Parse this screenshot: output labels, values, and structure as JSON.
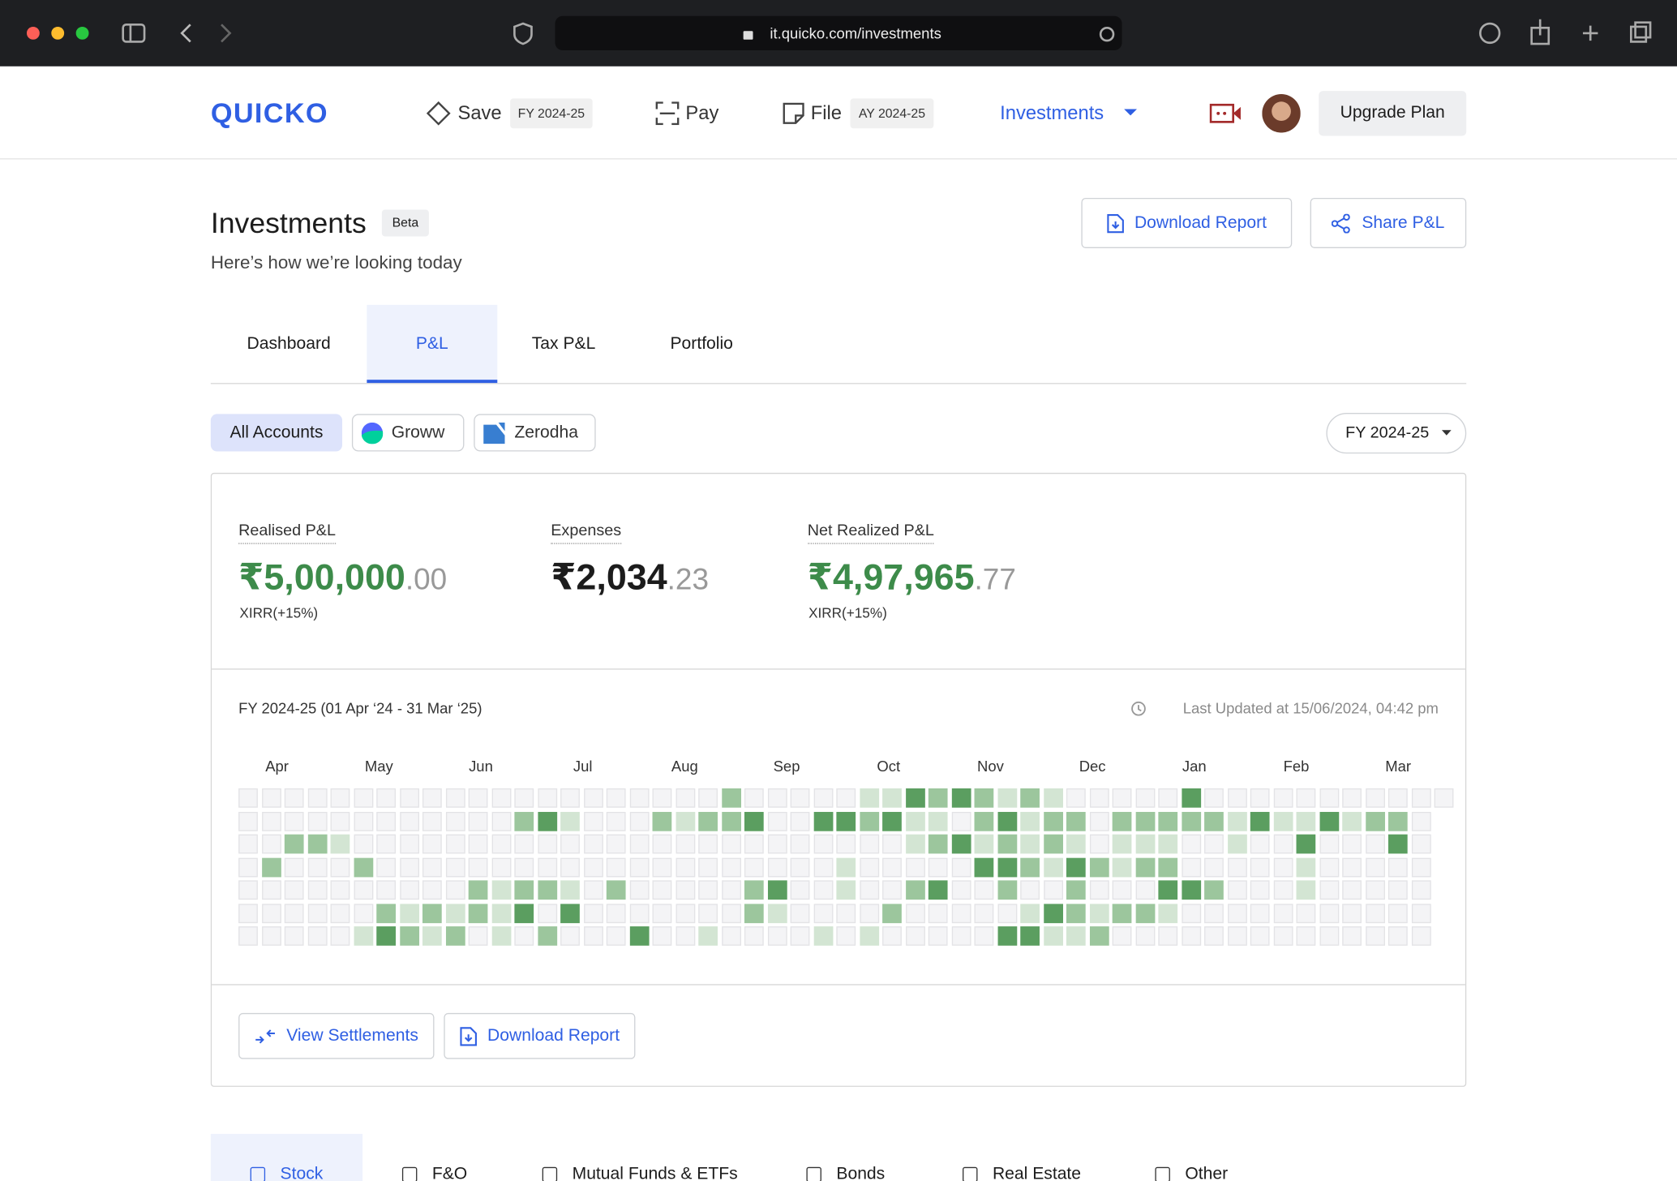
{
  "browser": {
    "url": "it.quicko.com/investments"
  },
  "nav": {
    "logo": "QUICKO",
    "items": [
      {
        "label": "Save",
        "badge": "FY 2024-25"
      },
      {
        "label": "Pay"
      },
      {
        "label": "File",
        "badge": "AY 2024-25"
      },
      {
        "label": "Investments"
      }
    ],
    "upgrade": "Upgrade Plan"
  },
  "header": {
    "title": "Investments",
    "badge": "Beta",
    "subtitle": "Here’s how we’re looking today",
    "actions": [
      "Download Report",
      "Share P&L"
    ]
  },
  "tabs": [
    "Dashboard",
    "P&L",
    "Tax P&L",
    "Portfolio"
  ],
  "active_tab": 1,
  "accounts": [
    "All Accounts",
    "Groww",
    "Zerodha"
  ],
  "period": "FY 2024-25",
  "summary": [
    {
      "label": "Realised P&L",
      "whole": "₹5,00,000",
      "decimals": ".00",
      "note": "XIRR(+15%)",
      "color": "#3d8b4a"
    },
    {
      "label": "Expenses",
      "whole": "₹2,034",
      "decimals": ".23",
      "color": "#1c1c1c"
    },
    {
      "label": "Net Realized P&L",
      "whole": "₹4,97,965",
      "decimals": ".77",
      "note": "XIRR(+15%)",
      "color": "#3d8b4a"
    }
  ],
  "heatmap": {
    "period": "FY 2024-25 (01 Apr ‘24 - 31 Mar ‘25)",
    "updated": "Last Updated at 15/06/2024, 04:42 pm",
    "months": [
      "Apr",
      "May",
      "Jun",
      "Jul",
      "Aug",
      "Sep",
      "Oct",
      "Nov",
      "Dec",
      "Jan",
      "Feb",
      "Mar"
    ],
    "colors": [
      "#f4f4f6",
      "#d3e5d3",
      "#9cc69d",
      "#5b9e60"
    ],
    "rows": [
      [
        0,
        0,
        0,
        0,
        0,
        0,
        0,
        0,
        0,
        0,
        0,
        0,
        0,
        0,
        0,
        0,
        0,
        0,
        0,
        0,
        0,
        2,
        0,
        0,
        0,
        0,
        0,
        1,
        1,
        3,
        2,
        3,
        2,
        1,
        2,
        1,
        0,
        0,
        0,
        0,
        0,
        3,
        0,
        0,
        0,
        0,
        0,
        0,
        0,
        0,
        0,
        0,
        0
      ],
      [
        0,
        0,
        0,
        0,
        0,
        0,
        0,
        0,
        0,
        0,
        0,
        0,
        2,
        3,
        1,
        0,
        0,
        0,
        2,
        1,
        2,
        2,
        3,
        0,
        0,
        3,
        3,
        2,
        3,
        1,
        1,
        0,
        2,
        3,
        1,
        2,
        2,
        0,
        2,
        2,
        2,
        2,
        2,
        1,
        3,
        1,
        1,
        3,
        1,
        2,
        2,
        0
      ],
      [
        0,
        0,
        2,
        2,
        1,
        0,
        0,
        0,
        0,
        0,
        0,
        0,
        0,
        0,
        0,
        0,
        0,
        0,
        0,
        0,
        0,
        0,
        0,
        0,
        0,
        0,
        0,
        0,
        0,
        1,
        2,
        3,
        1,
        2,
        1,
        2,
        1,
        0,
        1,
        1,
        1,
        0,
        0,
        1,
        0,
        0,
        3,
        0,
        0,
        0,
        3,
        0
      ],
      [
        0,
        2,
        0,
        0,
        0,
        2,
        0,
        0,
        0,
        0,
        0,
        0,
        0,
        0,
        0,
        0,
        0,
        0,
        0,
        0,
        0,
        0,
        0,
        0,
        0,
        0,
        1,
        0,
        0,
        0,
        0,
        0,
        3,
        3,
        2,
        1,
        3,
        2,
        1,
        2,
        2,
        0,
        0,
        0,
        0,
        0,
        1,
        0,
        0,
        0,
        0,
        0
      ],
      [
        0,
        0,
        0,
        0,
        0,
        0,
        0,
        0,
        0,
        0,
        2,
        1,
        2,
        2,
        1,
        0,
        2,
        0,
        0,
        0,
        0,
        0,
        2,
        3,
        0,
        0,
        1,
        0,
        0,
        2,
        3,
        0,
        0,
        2,
        0,
        0,
        2,
        0,
        0,
        0,
        3,
        3,
        2,
        0,
        0,
        0,
        1,
        0,
        0,
        0,
        0,
        0
      ],
      [
        0,
        0,
        0,
        0,
        0,
        0,
        2,
        1,
        2,
        1,
        2,
        1,
        3,
        0,
        3,
        0,
        0,
        0,
        0,
        0,
        0,
        0,
        2,
        1,
        0,
        0,
        0,
        0,
        2,
        0,
        0,
        0,
        0,
        0,
        1,
        3,
        2,
        1,
        2,
        2,
        1,
        0,
        0,
        0,
        0,
        0,
        0,
        0,
        0,
        0,
        0,
        0
      ],
      [
        0,
        0,
        0,
        0,
        0,
        1,
        3,
        2,
        1,
        2,
        0,
        1,
        0,
        2,
        0,
        0,
        0,
        3,
        0,
        0,
        1,
        0,
        0,
        0,
        0,
        1,
        0,
        1,
        0,
        0,
        0,
        0,
        0,
        3,
        3,
        1,
        1,
        2,
        0,
        0,
        0,
        0,
        0,
        0,
        0,
        0,
        0,
        0,
        0,
        0,
        0,
        0
      ]
    ]
  },
  "footer_actions": [
    "View Settlements",
    "Download Report"
  ],
  "asset_tabs": [
    "Stock",
    "F&O",
    "Mutual Funds & ETFs",
    "Bonds",
    "Real Estate",
    "Other"
  ]
}
